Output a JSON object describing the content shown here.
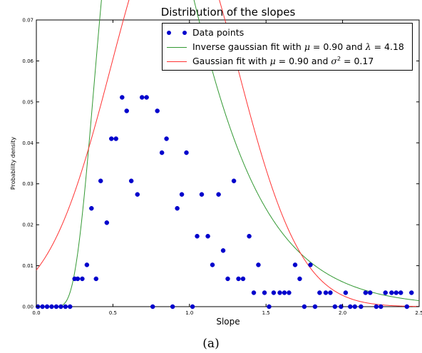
{
  "chart_data": {
    "type": "scatter",
    "title": "Distribution of the slopes",
    "xlabel": "Slope",
    "ylabel": "Probability density",
    "xlim": [
      0.0,
      2.5
    ],
    "ylim": [
      0.0,
      0.07
    ],
    "xticks": [
      "0.0",
      "0.5",
      "1.0",
      "1.5",
      "2.0",
      "2.5"
    ],
    "yticks": [
      "0.00",
      "0.01",
      "0.02",
      "0.03",
      "0.04",
      "0.05",
      "0.06",
      "0.07"
    ],
    "grid": false,
    "legend_position": "top-right",
    "series": [
      {
        "name": "Data points",
        "kind": "points",
        "color": "#0000cc",
        "x": [
          0.01,
          0.04,
          0.07,
          0.1,
          0.13,
          0.16,
          0.19,
          0.22,
          0.25,
          0.27,
          0.3,
          0.33,
          0.36,
          0.39,
          0.42,
          0.46,
          0.49,
          0.52,
          0.56,
          0.59,
          0.62,
          0.66,
          0.69,
          0.72,
          0.76,
          0.79,
          0.82,
          0.85,
          0.89,
          0.92,
          0.95,
          0.98,
          1.02,
          1.05,
          1.08,
          1.12,
          1.15,
          1.19,
          1.22,
          1.25,
          1.29,
          1.32,
          1.35,
          1.39,
          1.42,
          1.45,
          1.49,
          1.52,
          1.55,
          1.59,
          1.62,
          1.65,
          1.69,
          1.72,
          1.75,
          1.79,
          1.82,
          1.85,
          1.89,
          1.92,
          1.95,
          1.99,
          2.02,
          2.05,
          2.08,
          2.12,
          2.15,
          2.18,
          2.22,
          2.25,
          2.28,
          2.32,
          2.35,
          2.38,
          2.42,
          2.45
        ],
        "y": [
          0.0,
          0.0,
          0.0,
          0.0,
          0.0,
          0.0,
          0.0,
          0.0,
          0.0068,
          0.0068,
          0.0068,
          0.0102,
          0.024,
          0.0068,
          0.0307,
          0.0205,
          0.041,
          0.041,
          0.0511,
          0.0478,
          0.0307,
          0.0274,
          0.0511,
          0.0511,
          0.0,
          0.0478,
          0.0376,
          0.041,
          0.0,
          0.024,
          0.0274,
          0.0376,
          0.0,
          0.0172,
          0.0274,
          0.0172,
          0.0102,
          0.0274,
          0.0137,
          0.0068,
          0.0307,
          0.0068,
          0.0068,
          0.0172,
          0.0034,
          0.0102,
          0.0034,
          0.0,
          0.0034,
          0.0034,
          0.0034,
          0.0034,
          0.0102,
          0.0068,
          0.0,
          0.0102,
          0.0,
          0.0034,
          0.0034,
          0.0034,
          0.0,
          0.0,
          0.0034,
          0.0,
          0.0,
          0.0,
          0.0034,
          0.0034,
          0.0,
          0.0,
          0.0034,
          0.0034,
          0.0034,
          0.0034,
          0.0,
          0.0034
        ]
      },
      {
        "name": "Inverse gaussian fit with μ = 0.90 and λ = 4.18",
        "kind": "inverse_gaussian",
        "color": "#339933",
        "mu": 0.9,
        "lambda": 4.18
      },
      {
        "name": "Gaussian fit with μ = 0.90 and σ² = 0.17",
        "kind": "gaussian",
        "color": "#ff3333",
        "mu": 0.9,
        "sigma2": 0.17
      }
    ]
  },
  "legend": {
    "data_label": "Data points",
    "invgauss_prefix": "Inverse gaussian fit with ",
    "invgauss_mu_sym": "μ",
    "invgauss_mu_val": " =  0.90 and ",
    "invgauss_lambda_sym": "λ",
    "invgauss_lambda_val": " = 4.18",
    "gauss_prefix": "Gaussian fit with ",
    "gauss_mu_sym": "μ",
    "gauss_mu_val": " =  0.90 and ",
    "gauss_sigma_sym": "σ",
    "gauss_sigma_sup": "2",
    "gauss_sigma_val": " = 0.17"
  },
  "caption": "(a)"
}
